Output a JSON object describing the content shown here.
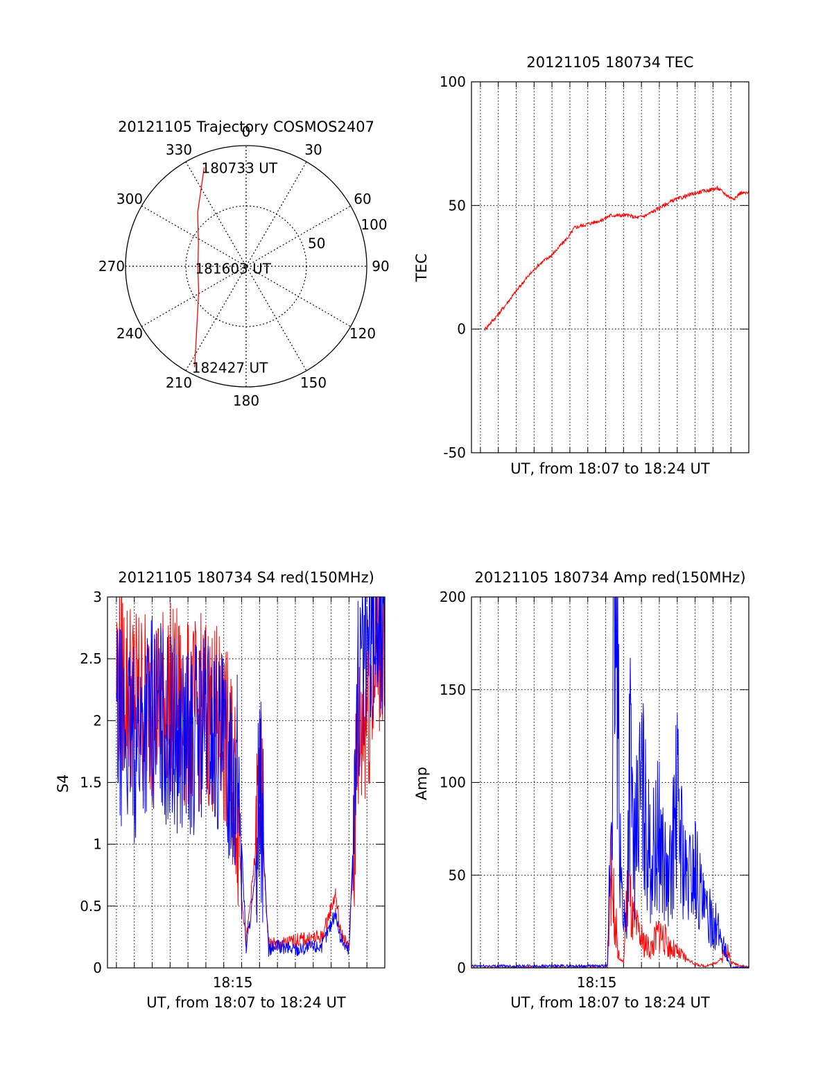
{
  "chart_data": [
    {
      "type": "polar",
      "title": "20121105 Trajectory COSMOS2407",
      "azimuth_labels": [
        "0",
        "30",
        "60",
        "90",
        "120",
        "150",
        "180",
        "210",
        "240",
        "270",
        "300",
        "330"
      ],
      "radial_labels": [
        "50",
        "100"
      ],
      "radial_range": [
        0,
        100
      ],
      "grid": true,
      "track_color": "#ff0000",
      "track": [
        {
          "az": 337,
          "r": 89
        },
        {
          "az": 318,
          "r": 60
        },
        {
          "az": 296,
          "r": 44
        },
        {
          "az": 268,
          "r": 40
        },
        {
          "az": 241,
          "r": 45
        },
        {
          "az": 221,
          "r": 62
        },
        {
          "az": 207,
          "r": 94
        }
      ],
      "annotations": [
        {
          "text": "180733 UT",
          "az": 337,
          "r": 89
        },
        {
          "text": "181603 UT",
          "az": 268,
          "r": 40
        },
        {
          "text": "182427 UT",
          "az": 207,
          "r": 94
        }
      ]
    },
    {
      "type": "line",
      "title": "20121105 180734 TEC",
      "xlabel": "UT, from 18:07 to 18:24 UT",
      "ylabel": "TEC",
      "xlim": [
        18.11,
        18.42
      ],
      "ylim": [
        -50,
        100
      ],
      "yticks": [
        -50,
        0,
        50,
        100
      ],
      "xticks": [],
      "grid": true,
      "series": [
        {
          "color": "#ff0000",
          "x": [
            18.125,
            18.14,
            18.155,
            18.17,
            18.185,
            18.2,
            18.21,
            18.22,
            18.225,
            18.235,
            18.245,
            18.255,
            18.265,
            18.275,
            18.285,
            18.295,
            18.305,
            18.315,
            18.335,
            18.36,
            18.385,
            18.4,
            18.405,
            18.41,
            18.42
          ],
          "y": [
            0,
            6,
            13,
            20,
            26,
            30,
            34,
            38,
            41,
            42,
            43,
            44,
            46,
            46,
            46,
            45,
            46,
            48,
            52,
            55,
            57,
            53,
            53,
            55,
            55
          ]
        }
      ]
    },
    {
      "type": "line",
      "title": "20121105 180734 S4 red(150MHz)",
      "xlabel": "UT, from 18:07 to 18:24 UT",
      "ylabel": "S4",
      "xlim": [
        18.11,
        18.42
      ],
      "ylim": [
        0,
        3
      ],
      "yticks": [
        "0",
        "0.5",
        "1",
        "1.5",
        "2",
        "2.5",
        "3"
      ],
      "xticks": [
        {
          "value": 18.25,
          "label": "18:15"
        }
      ],
      "grid": true,
      "series": [
        {
          "color": "#ff0000",
          "x": [
            18.12,
            18.14,
            18.16,
            18.18,
            18.2,
            18.22,
            18.24,
            18.255,
            18.26,
            18.265,
            18.275,
            18.28,
            18.29,
            18.3,
            18.32,
            18.35,
            18.365,
            18.37,
            18.38,
            18.39,
            18.41,
            18.42
          ],
          "y": [
            2.4,
            2.2,
            2.1,
            2.2,
            2.0,
            2.1,
            1.9,
            1.4,
            0.6,
            0.2,
            0.9,
            1.5,
            0.2,
            0.18,
            0.22,
            0.25,
            0.6,
            0.3,
            0.15,
            1.8,
            2.5,
            2.8
          ]
        },
        {
          "color": "#0000ff",
          "x": [
            18.12,
            18.14,
            18.16,
            18.18,
            18.2,
            18.22,
            18.24,
            18.255,
            18.26,
            18.265,
            18.275,
            18.28,
            18.29,
            18.3,
            18.32,
            18.35,
            18.365,
            18.37,
            18.38,
            18.39,
            18.41,
            18.42
          ],
          "y": [
            2.0,
            1.8,
            2.1,
            1.9,
            1.8,
            2.0,
            1.7,
            1.6,
            1.0,
            0.15,
            0.7,
            1.6,
            0.15,
            0.17,
            0.15,
            0.18,
            0.45,
            0.25,
            0.13,
            2.2,
            2.8,
            2.6
          ]
        }
      ]
    },
    {
      "type": "line",
      "title": "20121105 180734 Amp red(150MHz)",
      "xlabel": "UT, from 18:07 to 18:24 UT",
      "ylabel": "Amp",
      "xlim": [
        18.11,
        18.42
      ],
      "ylim": [
        0,
        200
      ],
      "yticks": [
        "0",
        "50",
        "100",
        "150",
        "200"
      ],
      "xticks": [
        {
          "value": 18.25,
          "label": "18:15"
        }
      ],
      "grid": true,
      "series": [
        {
          "color": "#ff0000",
          "x": [
            18.11,
            18.2,
            18.262,
            18.265,
            18.27,
            18.275,
            18.28,
            18.285,
            18.29,
            18.3,
            18.31,
            18.32,
            18.33,
            18.34,
            18.35,
            18.36,
            18.37,
            18.38,
            18.39,
            18.395,
            18.4,
            18.42
          ],
          "y": [
            0,
            0,
            0,
            55,
            30,
            5,
            3,
            45,
            25,
            15,
            10,
            20,
            12,
            8,
            5,
            2,
            1,
            2,
            5,
            12,
            3,
            0
          ]
        },
        {
          "color": "#0000ff",
          "x": [
            18.11,
            18.2,
            18.262,
            18.267,
            18.27,
            18.274,
            18.278,
            18.283,
            18.287,
            18.292,
            18.3,
            18.31,
            18.32,
            18.33,
            18.34,
            18.35,
            18.36,
            18.37,
            18.38,
            18.39,
            18.4,
            18.42
          ],
          "y": [
            1,
            1,
            1,
            100,
            190,
            120,
            40,
            20,
            120,
            60,
            100,
            55,
            75,
            40,
            90,
            45,
            55,
            30,
            25,
            15,
            0,
            0
          ]
        }
      ]
    }
  ]
}
